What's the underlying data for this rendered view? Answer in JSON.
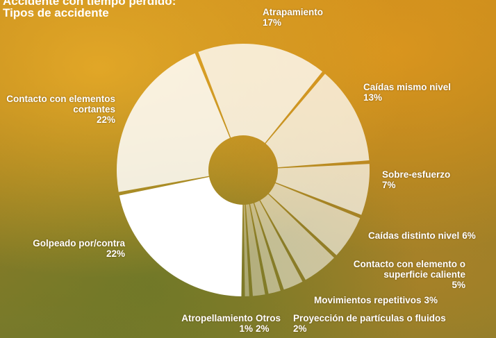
{
  "chart_data": {
    "type": "donut",
    "title": "Accidente con tiempo perdido:",
    "subtitle": "Tipos de accidente",
    "categories": [
      "Golpeado por/contra",
      "Contacto con elementos cortantes",
      "Atrapamiento",
      "Caídas mismo nivel",
      "Sobre-esfuerzo",
      "Caídas distinto nivel",
      "Contacto con elemento o superficie caliente",
      "Movimientos repetitivos",
      "Proyección de partículas o fluidos",
      "Otros",
      "Atropellamiento"
    ],
    "values": [
      22,
      22,
      17,
      13,
      7,
      6,
      5,
      3,
      2,
      2,
      1
    ],
    "value_labels": [
      "22%",
      "22%",
      "17%",
      "13%",
      "7%",
      "6%",
      "5%",
      "3%",
      "2%",
      "2%",
      "1%"
    ],
    "colors": [
      "rgba(255,255,255,1)",
      "rgba(255,255,255,0.85)",
      "rgba(255,255,255,0.8)",
      "rgba(255,255,255,0.75)",
      "rgba(255,255,255,0.7)",
      "rgba(255,255,255,0.62)",
      "rgba(255,255,255,0.55)",
      "rgba(255,255,255,0.5)",
      "rgba(255,255,255,0.45)",
      "rgba(255,255,255,0.4)",
      "rgba(255,255,255,0.35)"
    ]
  }
}
